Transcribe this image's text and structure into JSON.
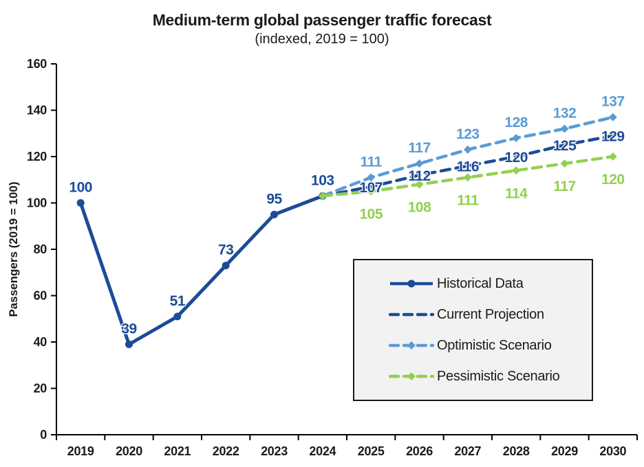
{
  "title": "Medium-term global passenger traffic forecast",
  "subtitle": "(indexed, 2019 = 100)",
  "colors": {
    "navy": "#1B4C97",
    "light_blue": "#5B9BD5",
    "green": "#92D050",
    "axis": "#000000",
    "legend_bg": "#F2F2F2"
  },
  "chart_data": {
    "type": "line",
    "title": "Medium-term global passenger traffic forecast",
    "subtitle": "(indexed, 2019 = 100)",
    "xlabel": "",
    "ylabel": "Passengers (2019 = 100)",
    "ylim": [
      0,
      160
    ],
    "ytick_step": 20,
    "grid": false,
    "legend_position": "inside lower-right",
    "categories": [
      "2019",
      "2020",
      "2021",
      "2022",
      "2023",
      "2024",
      "2025",
      "2026",
      "2027",
      "2028",
      "2029",
      "2030"
    ],
    "series": [
      {
        "name": "Historical Data",
        "color": "#1B4C97",
        "style": "solid",
        "marker": "circle",
        "label_position": "above",
        "x": [
          "2019",
          "2020",
          "2021",
          "2022",
          "2023",
          "2024"
        ],
        "values": [
          100,
          39,
          51,
          73,
          95,
          103
        ],
        "labels": [
          100,
          39,
          51,
          73,
          95,
          103
        ]
      },
      {
        "name": "Current Projection",
        "color": "#1B4C97",
        "style": "dashed",
        "marker": "none",
        "label_position": "on-line",
        "x": [
          "2024",
          "2025",
          "2026",
          "2027",
          "2028",
          "2029",
          "2030"
        ],
        "values": [
          103,
          107,
          112,
          116,
          120,
          125,
          129
        ],
        "labels": [
          null,
          107,
          112,
          116,
          120,
          125,
          129
        ]
      },
      {
        "name": "Optimistic Scenario",
        "color": "#5B9BD5",
        "style": "dashed",
        "marker": "diamond",
        "label_position": "above",
        "x": [
          "2024",
          "2025",
          "2026",
          "2027",
          "2028",
          "2029",
          "2030"
        ],
        "values": [
          103,
          111,
          117,
          123,
          128,
          132,
          137
        ],
        "labels": [
          null,
          111,
          117,
          123,
          128,
          132,
          137
        ]
      },
      {
        "name": "Pessimistic Scenario",
        "color": "#92D050",
        "style": "dashed",
        "marker": "diamond",
        "label_position": "below",
        "x": [
          "2024",
          "2025",
          "2026",
          "2027",
          "2028",
          "2029",
          "2030"
        ],
        "values": [
          103,
          105,
          108,
          111,
          114,
          117,
          120
        ],
        "labels": [
          null,
          105,
          108,
          111,
          114,
          117,
          120
        ]
      }
    ]
  }
}
